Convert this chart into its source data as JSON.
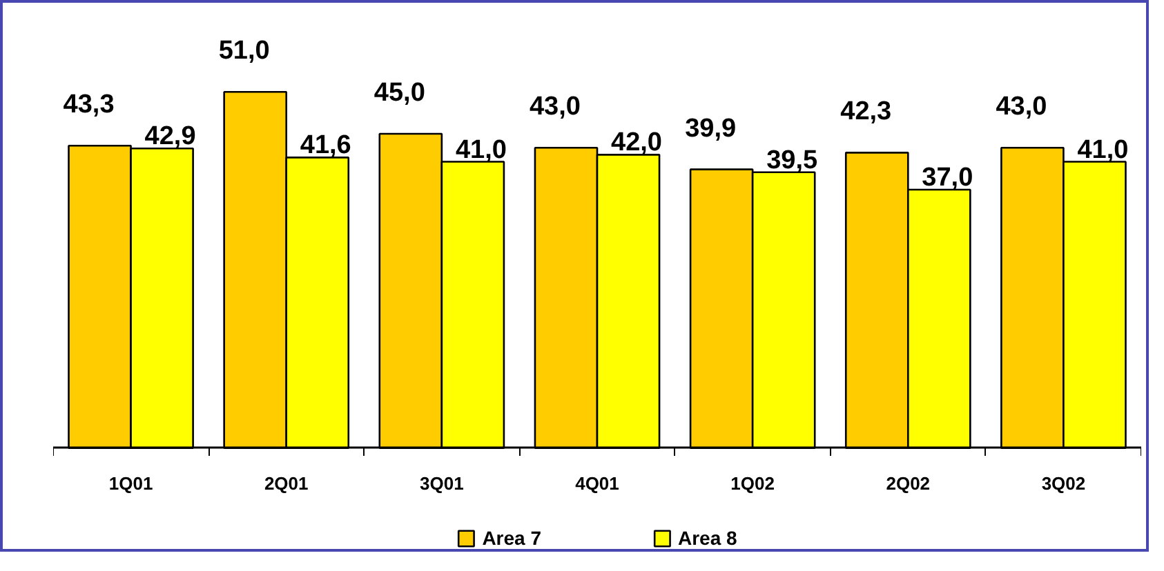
{
  "chart_data": {
    "type": "bar",
    "categories": [
      "1Q01",
      "2Q01",
      "3Q01",
      "4Q01",
      "1Q02",
      "2Q02",
      "3Q02"
    ],
    "series": [
      {
        "name": "Area 7",
        "color": "#ffcc00",
        "values": [
          43.3,
          51.0,
          45.0,
          43.0,
          39.9,
          42.3,
          43.0
        ],
        "value_labels": [
          "43,3",
          "51,0",
          "45,0",
          "43,0",
          "39,9",
          "42,3",
          "43,0"
        ]
      },
      {
        "name": "Area 8",
        "color": "#ffff00",
        "values": [
          42.9,
          41.6,
          41.0,
          42.0,
          39.5,
          37.0,
          41.0
        ],
        "value_labels": [
          "42,9",
          "41,6",
          "41,0",
          "42,0",
          "39,5",
          "37,0",
          "41,0"
        ]
      }
    ],
    "legend": "bottom"
  }
}
